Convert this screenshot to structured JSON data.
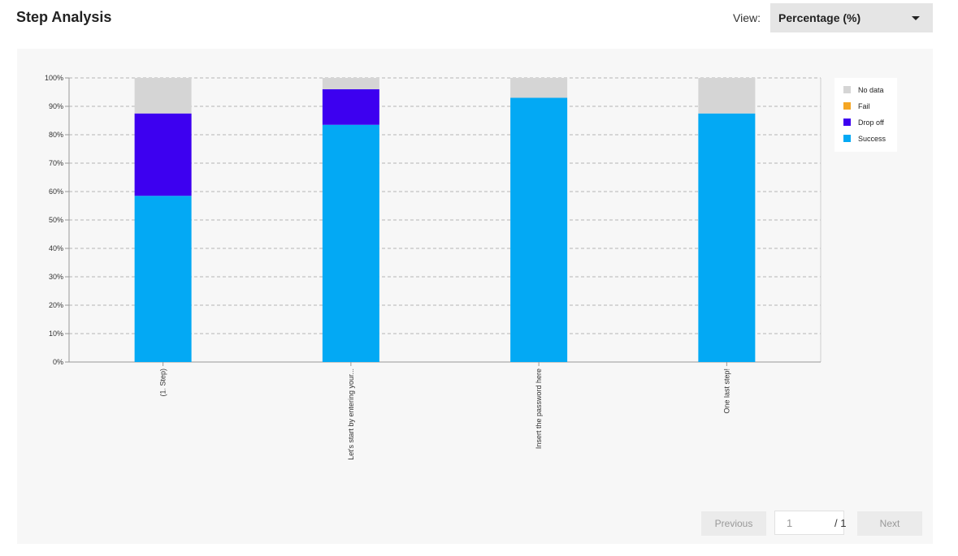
{
  "header": {
    "title": "Step Analysis",
    "view_label": "View:",
    "view_value": "Percentage (%)"
  },
  "pager": {
    "previous_label": "Previous",
    "page_value": "1",
    "total_label": "/ 1",
    "next_label": "Next"
  },
  "chart_data": {
    "type": "bar",
    "stacked": true,
    "categories": [
      "(1. Step)",
      "Let's start by entering your...",
      "Insert the password here",
      "One last step!"
    ],
    "series": [
      {
        "name": "Success",
        "color": "#03a9f4",
        "values": [
          58.5,
          83.5,
          93,
          87.5
        ]
      },
      {
        "name": "Drop off",
        "color": "#3d00f0",
        "values": [
          29,
          12.5,
          0,
          0
        ]
      },
      {
        "name": "Fail",
        "color": "#f5a623",
        "values": [
          0,
          0,
          0,
          0
        ]
      },
      {
        "name": "No data",
        "color": "#d5d5d5",
        "values": [
          12.5,
          4,
          7,
          12.5
        ]
      }
    ],
    "legend_order": [
      "No data",
      "Fail",
      "Drop off",
      "Success"
    ],
    "y_ticks": [
      "0%",
      "10%",
      "20%",
      "30%",
      "40%",
      "50%",
      "60%",
      "70%",
      "80%",
      "90%",
      "100%"
    ],
    "ylim": [
      0,
      100
    ],
    "grid": true,
    "legend_position": "top-right"
  }
}
